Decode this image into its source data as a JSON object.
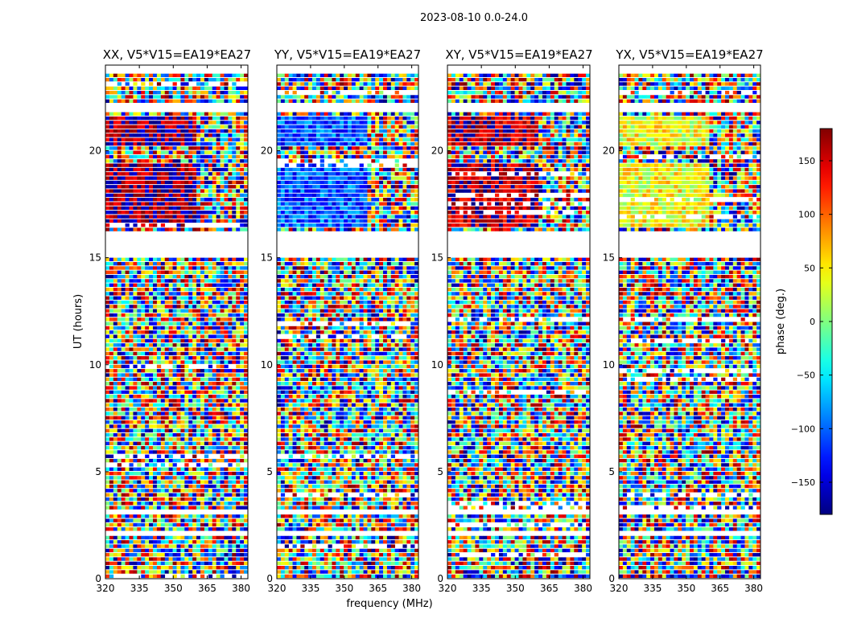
{
  "figure": {
    "suptitle": "2023-08-10 0.0-24.0"
  },
  "chart_data": {
    "type": "heatmap",
    "ylabel": "UT (hours)",
    "xlabel": "frequency (MHz)",
    "xlim": [
      320,
      383
    ],
    "ylim": [
      0,
      24
    ],
    "xticks": [
      320,
      335,
      350,
      365,
      380
    ],
    "yticks": [
      0,
      5,
      10,
      15,
      20
    ],
    "colorbar": {
      "label": "phase (deg.)",
      "range": [
        -180,
        180
      ],
      "ticks": [
        150,
        100,
        50,
        0,
        -50,
        -100,
        -150
      ],
      "tick_labels": [
        "150",
        "100",
        "50",
        "0",
        "−50",
        "−100",
        "−150"
      ],
      "colormap": "jet",
      "colors": [
        "#00007f",
        "#0000ff",
        "#00ffff",
        "#7fff7f",
        "#ffff00",
        "#ff0000",
        "#7f0000"
      ]
    },
    "panels": [
      {
        "title": "XX, V5*V15=EA19*EA27",
        "coherent_bias_deg": 175
      },
      {
        "title": "YY, V5*V15=EA19*EA27",
        "coherent_bias_deg": -105
      },
      {
        "title": "XY, V5*V15=EA19*EA27",
        "coherent_bias_deg": 160
      },
      {
        "title": "YX, V5*V15=EA19*EA27",
        "coherent_bias_deg": 40
      }
    ],
    "flagged_ut_ranges": [
      [
        16.2,
        15.1
      ],
      [
        23.7,
        24.0
      ],
      [
        21.8,
        22.1
      ],
      [
        3.0,
        3.2
      ],
      [
        2.1,
        2.25
      ],
      [
        1.15,
        1.3
      ]
    ],
    "coherent_ut_ranges": [
      [
        16.3,
        19.3
      ],
      [
        20.3,
        21.1
      ],
      [
        21.2,
        21.6
      ]
    ],
    "coherent_freq_max_mhz": 361
  }
}
